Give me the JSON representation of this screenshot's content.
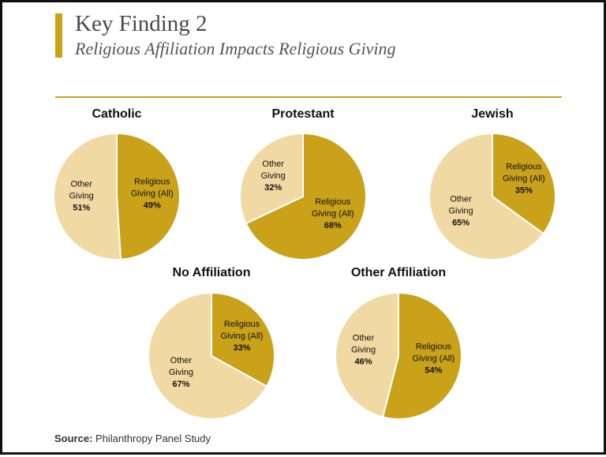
{
  "header": {
    "title": "Key Finding 2",
    "subtitle": "Religious Affiliation Impacts Religious Giving"
  },
  "footer": {
    "source_label": "Source:",
    "source_text": "Philanthropy Panel Study"
  },
  "colors": {
    "accent": "#c9a21a",
    "religious": "#c9a21a",
    "other": "#f1d9a3",
    "text": "#111111"
  },
  "chart_data": [
    {
      "type": "pie",
      "title": "Catholic",
      "slices": [
        {
          "label_lines": [
            "Religious",
            "Giving (All)"
          ],
          "value": 49,
          "display": "49%"
        },
        {
          "label_lines": [
            "Other",
            "Giving"
          ],
          "value": 51,
          "display": "51%"
        }
      ]
    },
    {
      "type": "pie",
      "title": "Protestant",
      "slices": [
        {
          "label_lines": [
            "Religious",
            "Giving (All)"
          ],
          "value": 68,
          "display": "68%"
        },
        {
          "label_lines": [
            "Other",
            "Giving"
          ],
          "value": 32,
          "display": "32%"
        }
      ]
    },
    {
      "type": "pie",
      "title": "Jewish",
      "slices": [
        {
          "label_lines": [
            "Religious",
            "Giving (All)"
          ],
          "value": 35,
          "display": "35%"
        },
        {
          "label_lines": [
            "Other",
            "Giving"
          ],
          "value": 65,
          "display": "65%"
        }
      ]
    },
    {
      "type": "pie",
      "title": "No Affiliation",
      "slices": [
        {
          "label_lines": [
            "Religious",
            "Giving (All)"
          ],
          "value": 33,
          "display": "33%"
        },
        {
          "label_lines": [
            "Other",
            "Giving"
          ],
          "value": 67,
          "display": "67%"
        }
      ]
    },
    {
      "type": "pie",
      "title": "Other Affiliation",
      "slices": [
        {
          "label_lines": [
            "Religious",
            "Giving (All)"
          ],
          "value": 54,
          "display": "54%"
        },
        {
          "label_lines": [
            "Other",
            "Giving"
          ],
          "value": 46,
          "display": "46%"
        }
      ]
    }
  ]
}
